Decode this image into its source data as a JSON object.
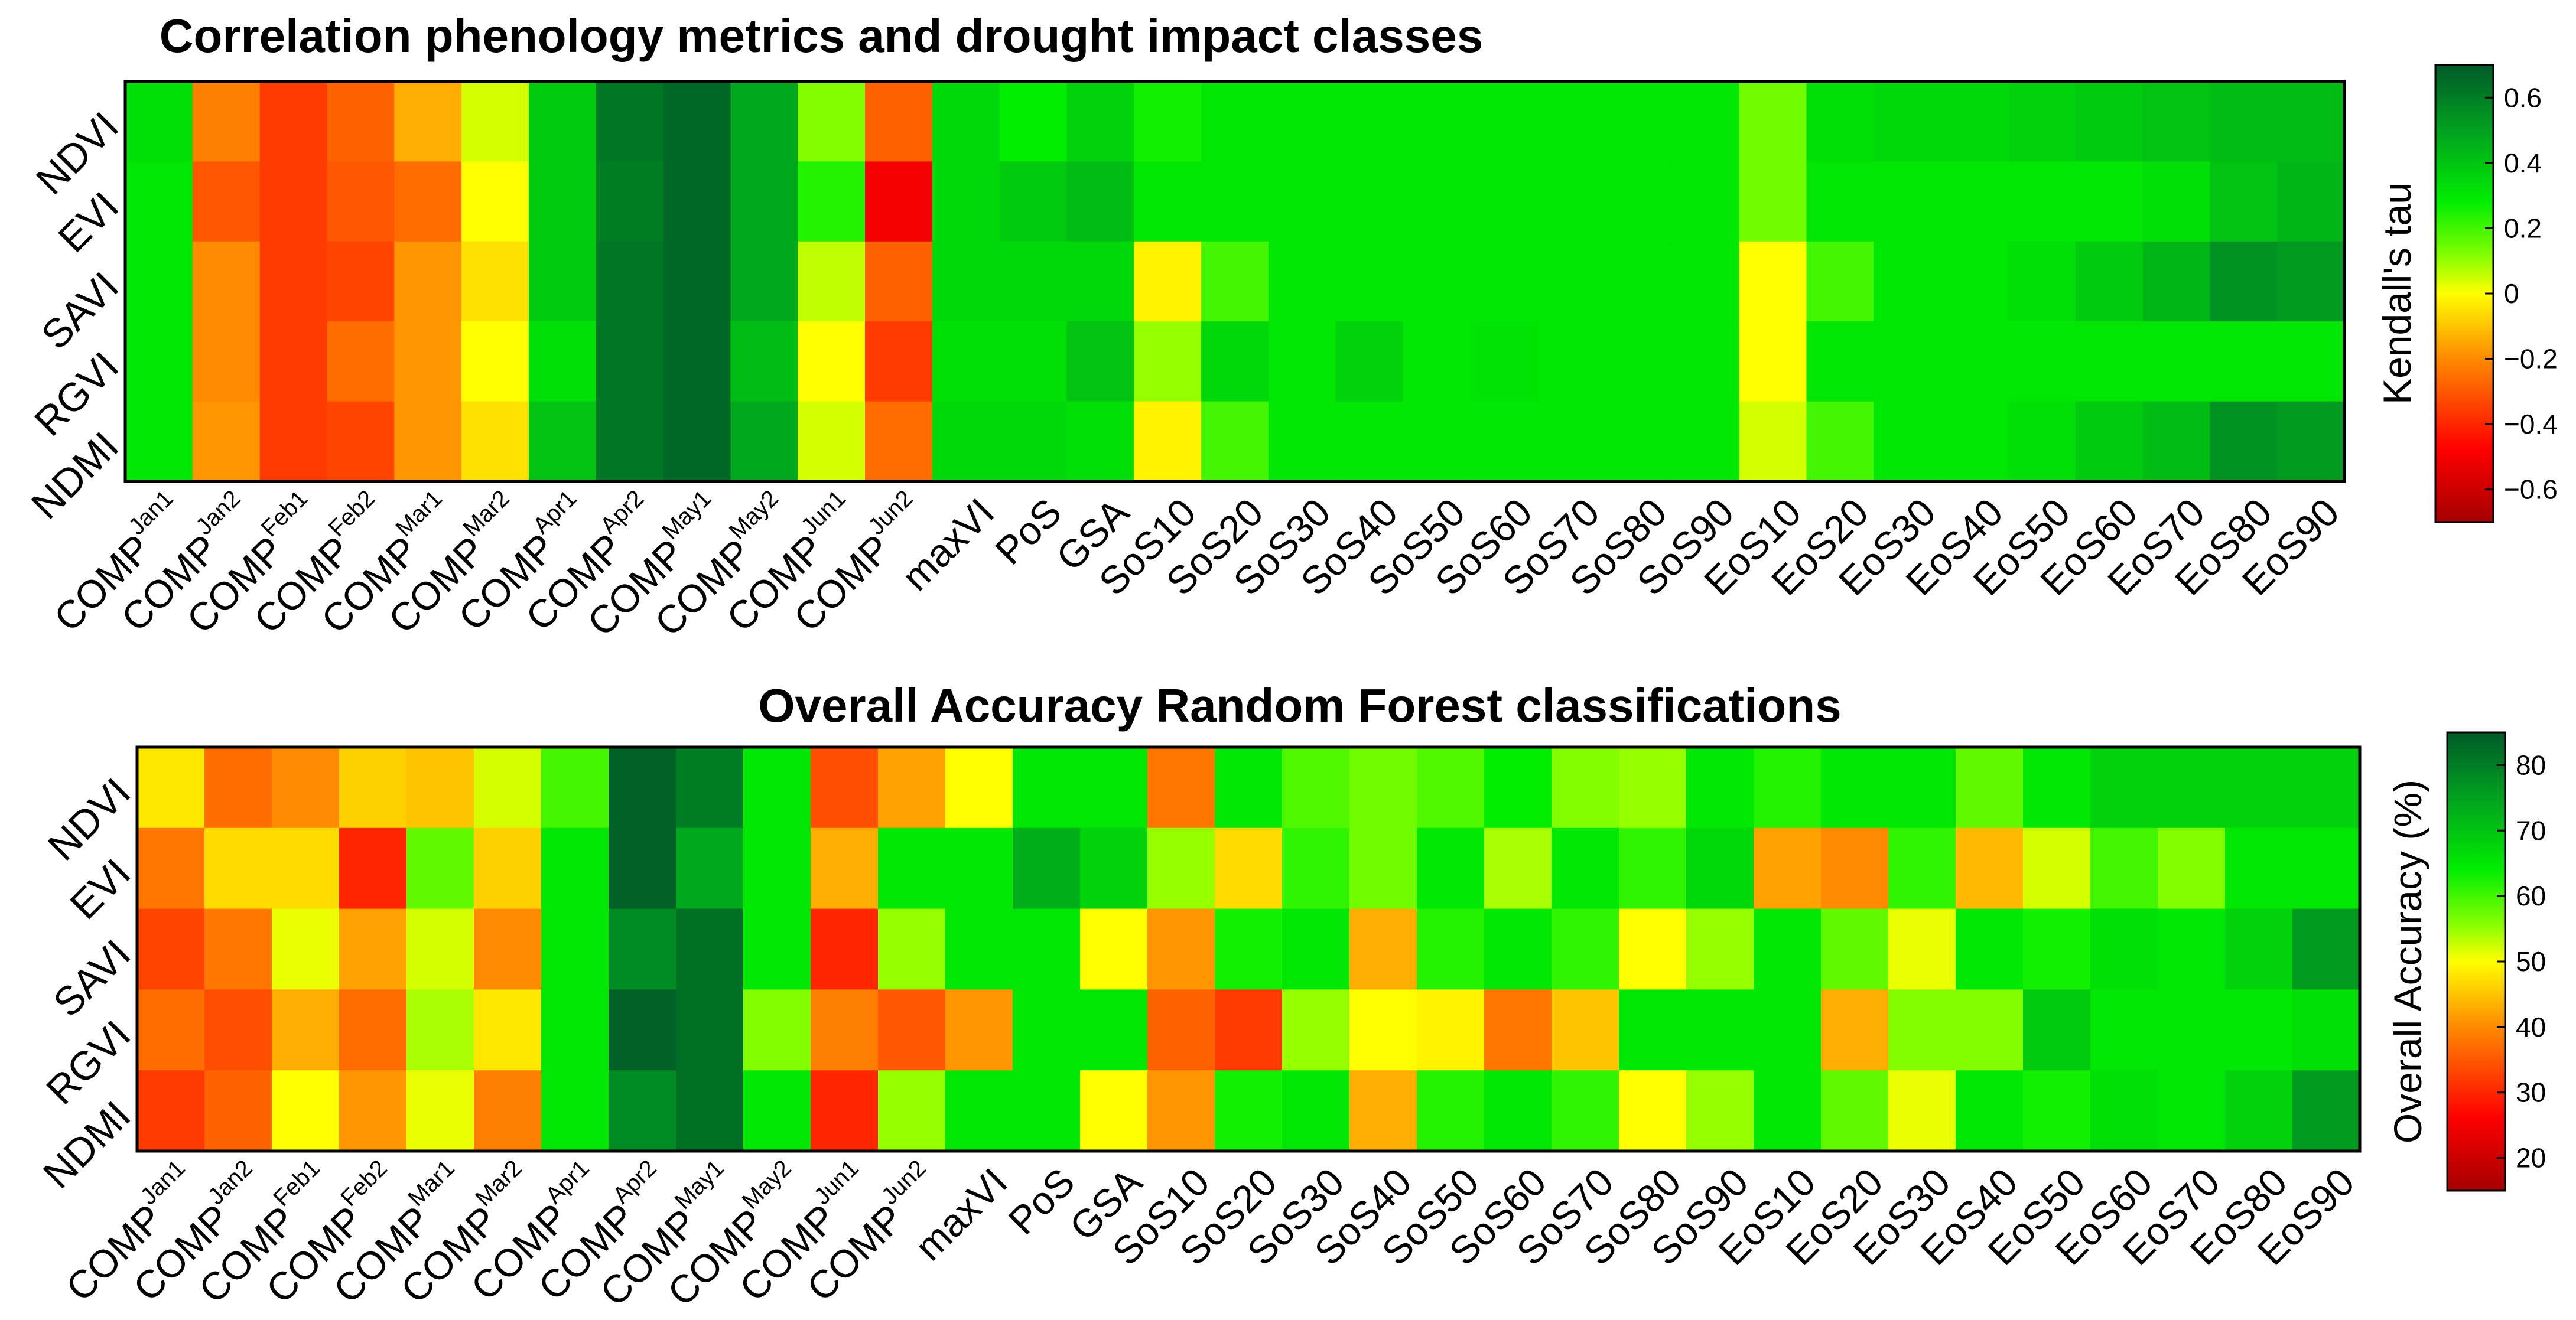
{
  "chart_data": [
    {
      "type": "heatmap",
      "title": "Correlation phenology metrics and drought impact classes",
      "rows": [
        "NDVI",
        "EVI",
        "SAVI",
        "RGVI",
        "NDMI"
      ],
      "columns": [
        {
          "main": "COMP",
          "sub": "Jan1"
        },
        {
          "main": "COMP",
          "sub": "Jan2"
        },
        {
          "main": "COMP",
          "sub": "Feb1"
        },
        {
          "main": "COMP",
          "sub": "Feb2"
        },
        {
          "main": "COMP",
          "sub": "Mar1"
        },
        {
          "main": "COMP",
          "sub": "Mar2"
        },
        {
          "main": "COMP",
          "sub": "Apr1"
        },
        {
          "main": "COMP",
          "sub": "Apr2"
        },
        {
          "main": "COMP",
          "sub": "May1"
        },
        {
          "main": "COMP",
          "sub": "May2"
        },
        {
          "main": "COMP",
          "sub": "Jun1"
        },
        {
          "main": "COMP",
          "sub": "Jun2"
        },
        {
          "main": "maxVI",
          "sub": ""
        },
        {
          "main": "PoS",
          "sub": ""
        },
        {
          "main": "GSA",
          "sub": ""
        },
        {
          "main": "SoS10",
          "sub": ""
        },
        {
          "main": "SoS20",
          "sub": ""
        },
        {
          "main": "SoS30",
          "sub": ""
        },
        {
          "main": "SoS40",
          "sub": ""
        },
        {
          "main": "SoS50",
          "sub": ""
        },
        {
          "main": "SoS60",
          "sub": ""
        },
        {
          "main": "SoS70",
          "sub": ""
        },
        {
          "main": "SoS80",
          "sub": ""
        },
        {
          "main": "SoS90",
          "sub": ""
        },
        {
          "main": "EoS10",
          "sub": ""
        },
        {
          "main": "EoS20",
          "sub": ""
        },
        {
          "main": "EoS30",
          "sub": ""
        },
        {
          "main": "EoS40",
          "sub": ""
        },
        {
          "main": "EoS50",
          "sub": ""
        },
        {
          "main": "EoS60",
          "sub": ""
        },
        {
          "main": "EoS70",
          "sub": ""
        },
        {
          "main": "EoS80",
          "sub": ""
        },
        {
          "main": "EoS90",
          "sub": ""
        }
      ],
      "values": [
        [
          0.32,
          -0.22,
          -0.36,
          -0.28,
          -0.14,
          0.04,
          0.38,
          0.62,
          0.66,
          0.48,
          0.12,
          -0.28,
          0.34,
          0.28,
          0.36,
          0.26,
          0.3,
          0.3,
          0.3,
          0.3,
          0.3,
          0.3,
          0.3,
          0.3,
          0.14,
          0.32,
          0.34,
          0.34,
          0.36,
          0.38,
          0.4,
          0.42,
          0.42
        ],
        [
          0.3,
          -0.3,
          -0.36,
          -0.3,
          -0.26,
          0.0,
          0.38,
          0.6,
          0.66,
          0.48,
          0.24,
          -0.5,
          0.34,
          0.38,
          0.42,
          0.3,
          0.3,
          0.3,
          0.3,
          0.3,
          0.3,
          0.3,
          0.3,
          0.3,
          0.14,
          0.3,
          0.3,
          0.3,
          0.3,
          0.3,
          0.32,
          0.4,
          0.44
        ],
        [
          0.3,
          -0.2,
          -0.36,
          -0.34,
          -0.18,
          -0.05,
          0.38,
          0.62,
          0.66,
          0.48,
          0.06,
          -0.28,
          0.34,
          0.34,
          0.34,
          -0.02,
          0.2,
          0.3,
          0.3,
          0.3,
          0.3,
          0.3,
          0.3,
          0.3,
          0.0,
          0.2,
          0.3,
          0.3,
          0.32,
          0.38,
          0.44,
          0.54,
          0.52
        ],
        [
          0.3,
          -0.2,
          -0.36,
          -0.26,
          -0.18,
          0.0,
          0.32,
          0.62,
          0.66,
          0.42,
          0.0,
          -0.36,
          0.32,
          0.32,
          0.4,
          0.1,
          0.34,
          0.3,
          0.36,
          0.3,
          0.31,
          0.3,
          0.3,
          0.3,
          0.0,
          0.3,
          0.3,
          0.3,
          0.3,
          0.3,
          0.3,
          0.3,
          0.3
        ],
        [
          0.3,
          -0.18,
          -0.36,
          -0.34,
          -0.18,
          -0.05,
          0.4,
          0.62,
          0.66,
          0.48,
          0.04,
          -0.26,
          0.34,
          0.34,
          0.32,
          -0.02,
          0.2,
          0.3,
          0.3,
          0.3,
          0.3,
          0.3,
          0.3,
          0.3,
          0.04,
          0.2,
          0.3,
          0.3,
          0.32,
          0.38,
          0.42,
          0.54,
          0.52
        ]
      ],
      "colorbar": {
        "label": "Kendall's tau",
        "min": -0.7,
        "max": 0.7,
        "ticks": [
          0.6,
          0.4,
          0.2,
          0,
          -0.2,
          -0.4,
          -0.6
        ],
        "tick_labels": [
          "0.6",
          "0.4",
          "0.2",
          "0",
          "−0.2",
          "−0.4",
          "−0.6"
        ]
      }
    },
    {
      "type": "heatmap",
      "title": "Overall Accuracy Random Forest classifications",
      "rows": [
        "NDVI",
        "EVI",
        "SAVI",
        "RGVI",
        "NDMI"
      ],
      "columns": [
        {
          "main": "COMP",
          "sub": "Jan1"
        },
        {
          "main": "COMP",
          "sub": "Jan2"
        },
        {
          "main": "COMP",
          "sub": "Feb1"
        },
        {
          "main": "COMP",
          "sub": "Feb2"
        },
        {
          "main": "COMP",
          "sub": "Mar1"
        },
        {
          "main": "COMP",
          "sub": "Mar2"
        },
        {
          "main": "COMP",
          "sub": "Apr1"
        },
        {
          "main": "COMP",
          "sub": "Apr2"
        },
        {
          "main": "COMP",
          "sub": "May1"
        },
        {
          "main": "COMP",
          "sub": "May2"
        },
        {
          "main": "COMP",
          "sub": "Jun1"
        },
        {
          "main": "COMP",
          "sub": "Jun2"
        },
        {
          "main": "maxVI",
          "sub": ""
        },
        {
          "main": "PoS",
          "sub": ""
        },
        {
          "main": "GSA",
          "sub": ""
        },
        {
          "main": "SoS10",
          "sub": ""
        },
        {
          "main": "SoS20",
          "sub": ""
        },
        {
          "main": "SoS30",
          "sub": ""
        },
        {
          "main": "SoS40",
          "sub": ""
        },
        {
          "main": "SoS50",
          "sub": ""
        },
        {
          "main": "SoS60",
          "sub": ""
        },
        {
          "main": "SoS70",
          "sub": ""
        },
        {
          "main": "SoS80",
          "sub": ""
        },
        {
          "main": "SoS90",
          "sub": ""
        },
        {
          "main": "EoS10",
          "sub": ""
        },
        {
          "main": "EoS20",
          "sub": ""
        },
        {
          "main": "EoS30",
          "sub": ""
        },
        {
          "main": "EoS40",
          "sub": ""
        },
        {
          "main": "EoS50",
          "sub": ""
        },
        {
          "main": "EoS60",
          "sub": ""
        },
        {
          "main": "EoS70",
          "sub": ""
        },
        {
          "main": "EoS80",
          "sub": ""
        },
        {
          "main": "EoS90",
          "sub": ""
        }
      ],
      "values": [
        [
          48,
          37,
          40,
          46,
          45,
          52,
          60,
          84,
          80,
          65,
          34,
          42,
          50,
          65,
          65,
          38,
          65,
          59,
          57,
          59,
          64,
          56,
          55,
          65,
          62,
          65,
          65,
          58,
          65,
          68,
          68,
          68,
          68
        ],
        [
          38,
          47,
          47,
          30,
          58,
          46,
          65,
          84,
          74,
          65,
          43,
          65,
          65,
          73,
          68,
          55,
          47,
          61,
          57,
          65,
          54,
          65,
          61,
          67,
          42,
          40,
          61,
          44,
          52,
          60,
          56,
          65,
          65
        ],
        [
          33,
          38,
          51,
          42,
          52,
          40,
          65,
          78,
          82,
          65,
          30,
          55,
          65,
          65,
          50,
          41,
          63,
          65,
          43,
          62,
          65,
          61,
          50,
          55,
          65,
          58,
          51,
          65,
          63,
          66,
          65,
          68,
          76
        ],
        [
          37,
          34,
          43,
          37,
          54,
          48,
          65,
          84,
          82,
          56,
          39,
          35,
          41,
          65,
          65,
          36,
          32,
          55,
          50,
          49,
          38,
          45,
          65,
          65,
          65,
          43,
          56,
          56,
          69,
          65,
          65,
          65,
          66
        ],
        [
          32,
          36,
          50,
          41,
          51,
          39,
          65,
          78,
          82,
          65,
          30,
          55,
          65,
          65,
          50,
          41,
          63,
          65,
          43,
          62,
          65,
          61,
          50,
          55,
          65,
          58,
          51,
          65,
          63,
          66,
          65,
          68,
          76
        ]
      ],
      "colorbar": {
        "label": "Overall Accuracy (%)",
        "min": 15,
        "max": 85,
        "ticks": [
          80,
          70,
          60,
          50,
          40,
          30,
          20
        ],
        "tick_labels": [
          "80",
          "70",
          "60",
          "50",
          "40",
          "30",
          "20"
        ]
      }
    }
  ]
}
